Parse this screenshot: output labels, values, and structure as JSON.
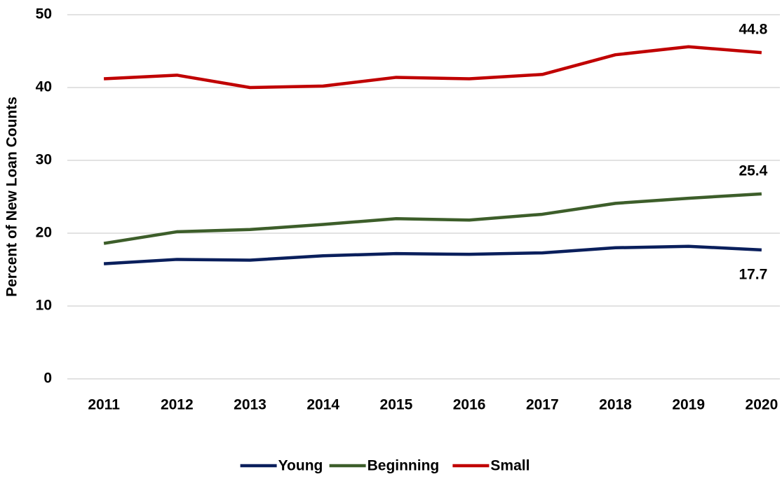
{
  "chart_data": {
    "type": "line",
    "y_label": "Percent of New Loan Counts",
    "categories": [
      "2011",
      "2012",
      "2013",
      "2014",
      "2015",
      "2016",
      "2017",
      "2018",
      "2019",
      "2020"
    ],
    "series": [
      {
        "name": "Young",
        "color": "#0a1f5c",
        "values": [
          15.8,
          16.4,
          16.3,
          16.9,
          17.2,
          17.1,
          17.3,
          18.0,
          18.2,
          17.7
        ]
      },
      {
        "name": "Beginning",
        "color": "#3d5e2a",
        "values": [
          18.6,
          20.2,
          20.5,
          21.2,
          22.0,
          21.8,
          22.6,
          24.1,
          24.8,
          25.4
        ]
      },
      {
        "name": "Small",
        "color": "#c00000",
        "values": [
          41.2,
          41.7,
          40.0,
          40.2,
          41.4,
          41.2,
          41.8,
          44.5,
          45.6,
          44.8
        ]
      }
    ],
    "ylim": [
      0,
      50
    ],
    "yticks": [
      0,
      10,
      20,
      30,
      40,
      50
    ],
    "grid": true,
    "label_last": true,
    "legend": "bottom"
  }
}
